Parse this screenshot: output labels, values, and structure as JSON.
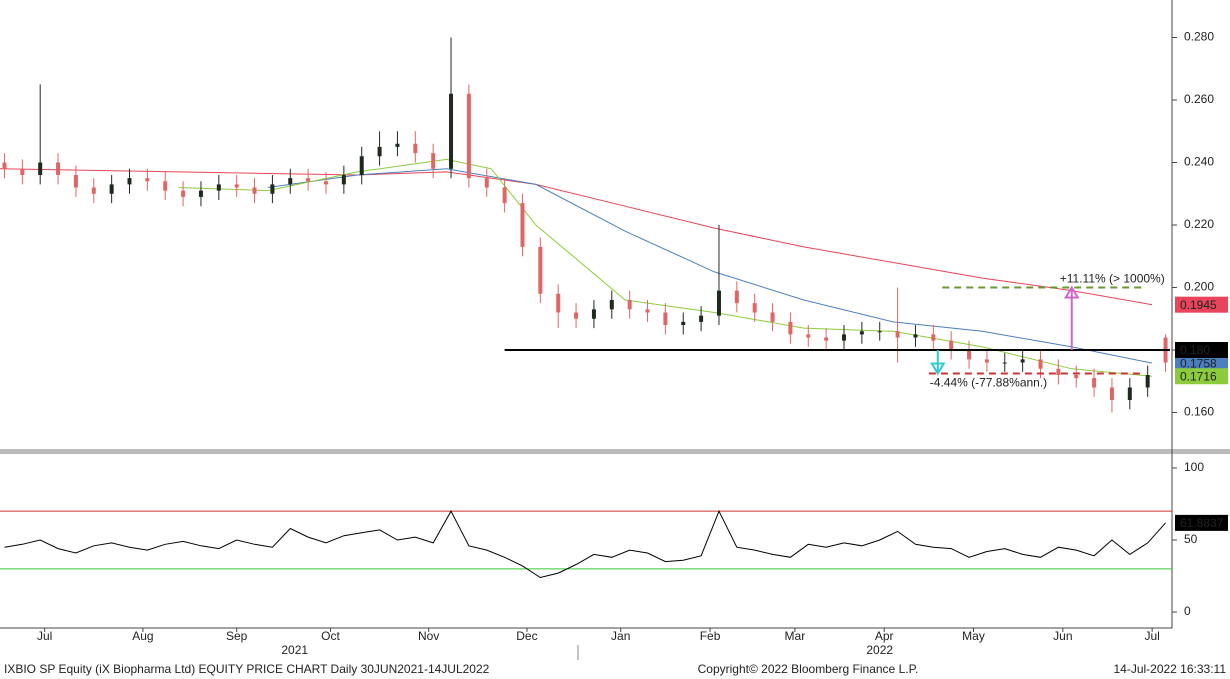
{
  "chart_data": [
    {
      "type": "candlestick",
      "xlim": [
        0,
        262
      ],
      "xticks": [
        {
          "value": 10,
          "label": "Jul"
        },
        {
          "value": 32,
          "label": "Aug"
        },
        {
          "value": 53,
          "label": "Sep"
        },
        {
          "value": 74,
          "label": "Oct"
        },
        {
          "value": 96,
          "label": "Nov"
        },
        {
          "value": 118,
          "label": "Dec"
        },
        {
          "value": 139,
          "label": "Jan"
        },
        {
          "value": 159,
          "label": "Feb"
        },
        {
          "value": 178,
          "label": "Mar"
        },
        {
          "value": 198,
          "label": "Apr"
        },
        {
          "value": 218,
          "label": "May"
        },
        {
          "value": 238,
          "label": "Jun"
        },
        {
          "value": 258,
          "label": "Jul"
        }
      ],
      "year_labels": [
        {
          "value": 66,
          "label": "2021"
        },
        {
          "value": 197,
          "label": "2022"
        }
      ],
      "ylim": [
        0.148,
        0.292
      ],
      "yticks": [
        {
          "value": 0.16,
          "label": "0.160"
        },
        {
          "value": 0.18,
          "label": "0.180"
        },
        {
          "value": 0.2,
          "label": "0.200"
        },
        {
          "value": 0.22,
          "label": "0.220"
        },
        {
          "value": 0.24,
          "label": "0.240"
        },
        {
          "value": 0.26,
          "label": "0.260"
        },
        {
          "value": 0.28,
          "label": "0.280"
        }
      ],
      "up_color": "#1e2a1e",
      "down_color": "#e06666",
      "x": [
        1,
        5,
        9,
        13,
        17,
        21,
        25,
        29,
        33,
        37,
        41,
        45,
        49,
        53,
        57,
        61,
        65,
        69,
        73,
        77,
        81,
        85,
        89,
        93,
        97,
        101,
        105,
        109,
        113,
        117,
        121,
        125,
        129,
        133,
        137,
        141,
        145,
        149,
        153,
        157,
        161,
        165,
        169,
        173,
        177,
        181,
        185,
        189,
        193,
        197,
        201,
        205,
        209,
        213,
        217,
        221,
        225,
        229,
        233,
        237,
        241,
        245,
        249,
        253,
        257,
        261
      ],
      "open": [
        0.24,
        0.238,
        0.236,
        0.24,
        0.236,
        0.232,
        0.23,
        0.233,
        0.235,
        0.234,
        0.231,
        0.229,
        0.231,
        0.233,
        0.232,
        0.23,
        0.233,
        0.235,
        0.234,
        0.233,
        0.236,
        0.242,
        0.245,
        0.246,
        0.243,
        0.238,
        0.262,
        0.235,
        0.232,
        0.227,
        0.213,
        0.198,
        0.192,
        0.19,
        0.193,
        0.196,
        0.193,
        0.192,
        0.188,
        0.189,
        0.191,
        0.199,
        0.195,
        0.192,
        0.189,
        0.185,
        0.184,
        0.183,
        0.185,
        0.186,
        0.186,
        0.184,
        0.185,
        0.183,
        0.18,
        0.177,
        0.176,
        0.176,
        0.177,
        0.174,
        0.172,
        0.171,
        0.168,
        0.164,
        0.168,
        0.184
      ],
      "high": [
        0.243,
        0.241,
        0.265,
        0.243,
        0.239,
        0.235,
        0.236,
        0.238,
        0.238,
        0.237,
        0.234,
        0.234,
        0.236,
        0.236,
        0.235,
        0.236,
        0.238,
        0.238,
        0.237,
        0.239,
        0.245,
        0.25,
        0.25,
        0.25,
        0.246,
        0.28,
        0.265,
        0.238,
        0.235,
        0.23,
        0.216,
        0.201,
        0.195,
        0.196,
        0.199,
        0.199,
        0.196,
        0.195,
        0.192,
        0.194,
        0.22,
        0.202,
        0.198,
        0.195,
        0.192,
        0.188,
        0.187,
        0.188,
        0.189,
        0.189,
        0.2,
        0.188,
        0.188,
        0.186,
        0.183,
        0.18,
        0.179,
        0.18,
        0.18,
        0.177,
        0.175,
        0.174,
        0.171,
        0.171,
        0.175,
        0.185
      ],
      "low": [
        0.235,
        0.233,
        0.233,
        0.233,
        0.229,
        0.227,
        0.227,
        0.23,
        0.231,
        0.228,
        0.226,
        0.226,
        0.228,
        0.229,
        0.227,
        0.227,
        0.23,
        0.231,
        0.23,
        0.23,
        0.233,
        0.239,
        0.242,
        0.24,
        0.235,
        0.235,
        0.232,
        0.229,
        0.224,
        0.21,
        0.195,
        0.187,
        0.187,
        0.187,
        0.19,
        0.19,
        0.189,
        0.185,
        0.185,
        0.186,
        0.188,
        0.192,
        0.189,
        0.186,
        0.182,
        0.181,
        0.18,
        0.18,
        0.182,
        0.183,
        0.176,
        0.181,
        0.18,
        0.177,
        0.174,
        0.173,
        0.173,
        0.173,
        0.171,
        0.169,
        0.168,
        0.165,
        0.16,
        0.161,
        0.165,
        0.173
      ],
      "close": [
        0.238,
        0.236,
        0.24,
        0.236,
        0.232,
        0.23,
        0.233,
        0.235,
        0.234,
        0.231,
        0.229,
        0.231,
        0.233,
        0.232,
        0.23,
        0.233,
        0.235,
        0.234,
        0.233,
        0.236,
        0.242,
        0.245,
        0.246,
        0.243,
        0.238,
        0.262,
        0.235,
        0.232,
        0.227,
        0.213,
        0.198,
        0.192,
        0.19,
        0.193,
        0.196,
        0.193,
        0.192,
        0.188,
        0.189,
        0.191,
        0.199,
        0.195,
        0.192,
        0.189,
        0.185,
        0.184,
        0.183,
        0.185,
        0.186,
        0.186,
        0.184,
        0.185,
        0.183,
        0.18,
        0.177,
        0.176,
        0.176,
        0.177,
        0.174,
        0.172,
        0.171,
        0.168,
        0.164,
        0.168,
        0.172,
        0.176
      ],
      "averages": [
        {
          "color": "#e8445a",
          "text_color": "#ffffff",
          "x": [
            0,
            40,
            80,
            100,
            120,
            140,
            160,
            180,
            200,
            220,
            240,
            258
          ],
          "values": [
            0.238,
            0.237,
            0.236,
            0.237,
            0.233,
            0.226,
            0.219,
            0.213,
            0.208,
            0.203,
            0.199,
            0.1945
          ]
        },
        {
          "color": "#4a7fc0",
          "text_color": "#ffffff",
          "x": [
            60,
            80,
            100,
            120,
            140,
            160,
            180,
            200,
            220,
            240,
            258
          ],
          "values": [
            0.232,
            0.236,
            0.238,
            0.233,
            0.218,
            0.205,
            0.196,
            0.189,
            0.186,
            0.181,
            0.1758
          ]
        },
        {
          "color": "#8ccc3c",
          "text_color": "#000000",
          "x": [
            40,
            60,
            80,
            100,
            110,
            120,
            140,
            160,
            180,
            200,
            220,
            240,
            258
          ],
          "values": [
            0.232,
            0.231,
            0.237,
            0.241,
            0.238,
            0.22,
            0.196,
            0.192,
            0.187,
            0.186,
            0.181,
            0.174,
            0.1716
          ]
        }
      ],
      "hline": {
        "value": 0.18,
        "label": "0.180",
        "x_start": 113,
        "color": "#000000"
      },
      "dashed": [
        {
          "value": 0.2,
          "x": [
            211,
            256
          ],
          "color": "#669933"
        },
        {
          "value": 0.1725,
          "x": [
            208,
            256
          ],
          "color": "#cc3333"
        }
      ],
      "measures": [
        {
          "x": 240,
          "from": 0.18,
          "to": 0.2,
          "color": "#cc66cc",
          "text": "+11.11% (> 1000%)"
        },
        {
          "x": 210,
          "from": 0.18,
          "to": 0.1725,
          "color": "#33cccc",
          "text": "-4.44% (-77.88%ann.)"
        }
      ]
    },
    {
      "type": "line",
      "ylim": [
        -9,
        109
      ],
      "yticks": [
        0,
        50,
        100
      ],
      "ref_lines": [
        {
          "value": 70,
          "color": "#cc3333"
        },
        {
          "value": 30,
          "color": "#33cc33"
        }
      ],
      "series": [
        {
          "color": "#000000",
          "x": [
            1,
            5,
            9,
            13,
            17,
            21,
            25,
            29,
            33,
            37,
            41,
            45,
            49,
            53,
            57,
            61,
            65,
            69,
            73,
            77,
            81,
            85,
            89,
            93,
            97,
            101,
            105,
            109,
            113,
            117,
            121,
            125,
            129,
            133,
            137,
            141,
            145,
            149,
            153,
            157,
            161,
            165,
            169,
            173,
            177,
            181,
            185,
            189,
            193,
            197,
            201,
            205,
            209,
            213,
            217,
            221,
            225,
            229,
            233,
            237,
            241,
            245,
            249,
            253,
            257,
            261
          ],
          "values": [
            45,
            47,
            50,
            44,
            41,
            46,
            48,
            45,
            43,
            47,
            49,
            46,
            44,
            50,
            47,
            45,
            58,
            52,
            48,
            53,
            55,
            57,
            50,
            52,
            48,
            70,
            46,
            43,
            38,
            32,
            24,
            27,
            33,
            40,
            38,
            43,
            41,
            35,
            36,
            39,
            70,
            45,
            43,
            40,
            38,
            47,
            45,
            48,
            46,
            50,
            56,
            47,
            45,
            44,
            38,
            42,
            44,
            40,
            38,
            45,
            43,
            39,
            50,
            40,
            48,
            61.8837
          ]
        }
      ]
    }
  ],
  "footer": {
    "left": "IXBIO SP Equity (iX Biopharma Ltd) EQUITY PRICE CHART  Daily 30JUN2021-14JUL2022",
    "center": "Copyright© 2022 Bloomberg Finance L.P.",
    "right": "14-Jul-2022 16:33:11"
  }
}
